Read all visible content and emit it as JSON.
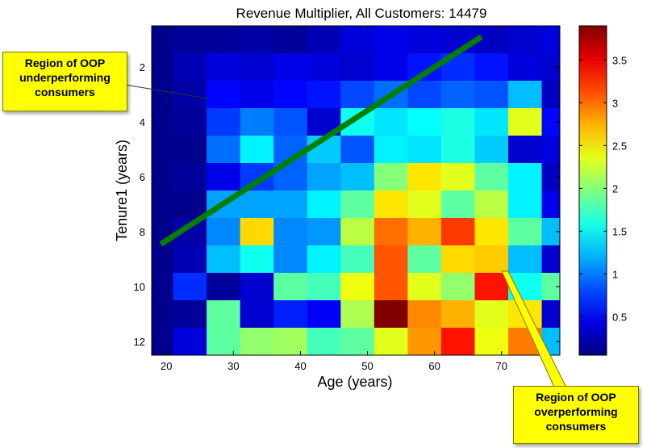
{
  "chart_data": {
    "type": "heatmap",
    "title": "Revenue Multiplier, All Customers: 14479",
    "xlabel": "Age (years)",
    "ylabel": "Tenure1 (years)",
    "x_ticks": [
      20,
      30,
      40,
      50,
      60,
      70
    ],
    "y_ticks": [
      2,
      4,
      6,
      8,
      10,
      12
    ],
    "x_centers": [
      18.5,
      23.5,
      28.5,
      33.5,
      38.5,
      43.5,
      48.5,
      53.5,
      58.5,
      63.5,
      68.5,
      73.5,
      78.5
    ],
    "y_centers": [
      1,
      2,
      3,
      4,
      5,
      6,
      7,
      8,
      9,
      10,
      11,
      12
    ],
    "xlim": [
      17.8,
      78.7
    ],
    "ylim": [
      0.5,
      12.5
    ],
    "color_range": [
      0.05,
      3.9
    ],
    "colorbar_ticks": [
      0.5,
      1,
      1.5,
      2,
      2.5,
      3,
      3.5
    ],
    "colormap": "jet",
    "values": [
      [
        0.1,
        0.15,
        0.15,
        0.2,
        0.15,
        0.25,
        0.4,
        0.45,
        0.4,
        0.35,
        0.3,
        0.35,
        0.4
      ],
      [
        0.1,
        0.25,
        0.4,
        0.35,
        0.45,
        0.4,
        0.35,
        0.45,
        0.6,
        0.7,
        0.6,
        0.4,
        0.35
      ],
      [
        0.1,
        0.2,
        0.55,
        0.45,
        0.55,
        0.6,
        0.8,
        0.95,
        0.8,
        0.9,
        0.85,
        1.25,
        0.3
      ],
      [
        0.1,
        0.15,
        0.75,
        1.0,
        0.85,
        0.35,
        1.55,
        1.4,
        1.5,
        1.6,
        1.4,
        2.35,
        0.55
      ],
      [
        0.1,
        0.1,
        0.95,
        1.45,
        0.9,
        1.3,
        0.85,
        1.45,
        1.4,
        1.6,
        1.3,
        0.35,
        0.4
      ],
      [
        0.1,
        0.15,
        0.45,
        0.75,
        0.9,
        1.15,
        1.25,
        2.0,
        2.55,
        2.35,
        1.85,
        1.45,
        0.3
      ],
      [
        0.1,
        0.1,
        1.15,
        1.15,
        1.15,
        1.45,
        1.85,
        2.55,
        2.35,
        1.85,
        2.2,
        1.45,
        0.45
      ],
      [
        0.1,
        0.2,
        1.05,
        2.6,
        1.05,
        1.1,
        2.2,
        3.0,
        2.75,
        3.2,
        2.55,
        1.85,
        1.25
      ],
      [
        0.1,
        0.25,
        1.25,
        1.55,
        1.05,
        1.45,
        1.75,
        3.1,
        1.85,
        2.6,
        2.65,
        1.25,
        0.35
      ],
      [
        0.1,
        0.7,
        0.15,
        0.35,
        1.85,
        1.75,
        2.4,
        3.1,
        2.35,
        2.05,
        3.35,
        1.55,
        1.85
      ],
      [
        0.1,
        0.15,
        1.85,
        0.35,
        0.65,
        0.5,
        2.15,
        3.9,
        2.9,
        2.75,
        2.35,
        2.55,
        0.35
      ],
      [
        0.1,
        0.4,
        1.85,
        2.05,
        2.1,
        1.75,
        1.85,
        2.35,
        2.85,
        3.35,
        2.4,
        2.95,
        1.25
      ]
    ],
    "overlay": {
      "type": "line",
      "color": "#008000",
      "points": [
        [
          19.2,
          8.45
        ],
        [
          67.0,
          0.9
        ]
      ]
    }
  },
  "annotations": {
    "underperforming": {
      "lines": [
        "Region of OOP",
        "underperforming",
        "consumers"
      ],
      "color": "#ffff00"
    },
    "overperforming": {
      "lines": [
        "Region of OOP",
        "overperforming",
        "consumers"
      ],
      "color": "#ffff00"
    }
  }
}
